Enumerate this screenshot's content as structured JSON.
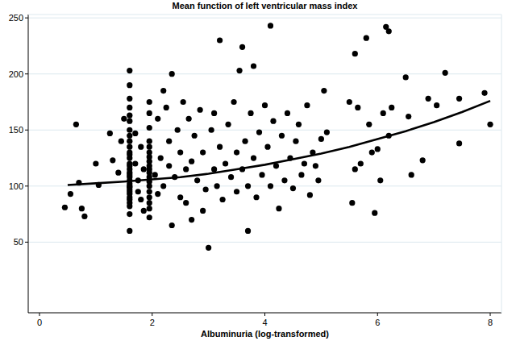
{
  "chart_data": {
    "type": "scatter",
    "title": "Mean function of left ventricular mass index",
    "x_label": "Albuminuria (log-transformed)",
    "xlim": [
      -0.2,
      8.2
    ],
    "ylim": [
      -13,
      253
    ],
    "xticks": [
      0,
      2,
      4,
      6,
      8
    ],
    "yticks": [
      50,
      100,
      150,
      200,
      250
    ],
    "grid": true,
    "series": [
      {
        "type": "scatter",
        "color": "#000000",
        "marker": "circle",
        "x": [
          0.45,
          0.55,
          0.65,
          0.7,
          0.75,
          0.8,
          1.0,
          1.05,
          1.25,
          1.3,
          1.4,
          1.45,
          1.5,
          1.6,
          1.6,
          1.6,
          1.6,
          1.6,
          1.6,
          1.6,
          1.6,
          1.6,
          1.6,
          1.6,
          1.6,
          1.6,
          1.6,
          1.6,
          1.6,
          1.6,
          1.6,
          1.6,
          1.6,
          1.6,
          1.6,
          1.6,
          1.6,
          1.6,
          1.6,
          1.6,
          1.6,
          1.6,
          1.6,
          1.6,
          1.6,
          1.7,
          1.7,
          1.75,
          1.75,
          1.8,
          1.8,
          1.85,
          1.85,
          1.95,
          1.95,
          1.95,
          1.95,
          1.95,
          1.95,
          1.95,
          1.95,
          1.95,
          1.95,
          1.95,
          1.95,
          1.95,
          1.95,
          1.95,
          1.95,
          1.95,
          1.95,
          1.95,
          2.05,
          2.1,
          2.1,
          2.15,
          2.2,
          2.2,
          2.25,
          2.3,
          2.3,
          2.35,
          2.35,
          2.4,
          2.45,
          2.5,
          2.5,
          2.55,
          2.6,
          2.6,
          2.65,
          2.7,
          2.7,
          2.75,
          2.8,
          2.85,
          2.9,
          2.9,
          2.95,
          3.0,
          3.05,
          3.1,
          3.1,
          3.15,
          3.2,
          3.2,
          3.25,
          3.3,
          3.35,
          3.4,
          3.45,
          3.5,
          3.5,
          3.55,
          3.6,
          3.6,
          3.65,
          3.7,
          3.7,
          3.75,
          3.8,
          3.8,
          3.85,
          3.9,
          3.95,
          4.0,
          4.05,
          4.1,
          4.1,
          4.15,
          4.2,
          4.25,
          4.3,
          4.35,
          4.4,
          4.45,
          4.5,
          4.55,
          4.6,
          4.65,
          4.7,
          4.75,
          4.8,
          4.85,
          4.9,
          4.95,
          5.0,
          5.05,
          5.1,
          5.5,
          5.55,
          5.6,
          5.6,
          5.65,
          5.7,
          5.8,
          5.85,
          5.9,
          5.95,
          6.0,
          6.05,
          6.1,
          6.15,
          6.2,
          6.2,
          6.25,
          6.5,
          6.55,
          6.6,
          6.8,
          6.9,
          7.05,
          7.2,
          7.45,
          7.45,
          7.9,
          8.0
        ],
        "values": [
          81,
          93,
          155,
          103,
          80,
          73,
          120,
          101,
          147,
          123,
          112,
          140,
          160,
          60,
          75,
          82,
          85,
          88,
          90,
          93,
          95,
          97,
          99,
          100,
          102,
          105,
          108,
          110,
          112,
          115,
          118,
          120,
          125,
          128,
          130,
          135,
          140,
          145,
          150,
          158,
          163,
          170,
          178,
          190,
          203,
          147,
          120,
          105,
          95,
          135,
          88,
          78,
          115,
          72,
          80,
          85,
          90,
          95,
          100,
          104,
          108,
          112,
          115,
          118,
          122,
          126,
          130,
          135,
          140,
          152,
          165,
          175,
          110,
          160,
          93,
          125,
          185,
          100,
          170,
          140,
          118,
          200,
          65,
          108,
          150,
          130,
          90,
          175,
          115,
          85,
          160,
          122,
          70,
          145,
          105,
          168,
          130,
          78,
          97,
          45,
          150,
          115,
          165,
          100,
          230,
          135,
          88,
          120,
          155,
          108,
          175,
          130,
          95,
          203,
          224,
          115,
          140,
          60,
          100,
          165,
          207,
          125,
          90,
          148,
          110,
          172,
          135,
          243,
          100,
          158,
          118,
          80,
          145,
          105,
          165,
          125,
          98,
          140,
          155,
          110,
          120,
          172,
          92,
          130,
          118,
          105,
          142,
          185,
          148,
          175,
          85,
          218,
          115,
          170,
          120,
          232,
          155,
          130,
          76,
          133,
          105,
          165,
          242,
          238,
          145,
          170,
          197,
          162,
          110,
          123,
          178,
          172,
          201,
          138,
          178,
          183,
          155
        ]
      },
      {
        "type": "line",
        "color": "#000000",
        "line_style": "solid",
        "x": [
          0.5,
          1,
          1.5,
          2,
          2.5,
          3,
          3.5,
          4,
          4.5,
          5,
          5.5,
          6,
          6.5,
          7,
          7.5,
          8
        ],
        "values": [
          101,
          102.5,
          104,
          106,
          108,
          111,
          115,
          119,
          124,
          129,
          135,
          142,
          149,
          157,
          166,
          176
        ]
      }
    ]
  }
}
